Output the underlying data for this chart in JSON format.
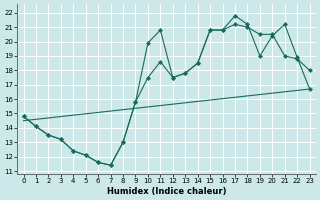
{
  "xlabel": "Humidex (Indice chaleur)",
  "xlim": [
    -0.5,
    23.5
  ],
  "ylim": [
    10.8,
    22.6
  ],
  "yticks": [
    11,
    12,
    13,
    14,
    15,
    16,
    17,
    18,
    19,
    20,
    21,
    22
  ],
  "xticks": [
    0,
    1,
    2,
    3,
    4,
    5,
    6,
    7,
    8,
    9,
    10,
    11,
    12,
    13,
    14,
    15,
    16,
    17,
    18,
    19,
    20,
    21,
    22,
    23
  ],
  "bg_color": "#cce8e8",
  "line_color": "#1a6b5a",
  "grid_color": "#ffffff",
  "line1_x": [
    0,
    1,
    2,
    3,
    4,
    5,
    6,
    7,
    8,
    9,
    10,
    11,
    12,
    13,
    14,
    15,
    16,
    17,
    18,
    19,
    20,
    21,
    22,
    23
  ],
  "line1_y": [
    14.8,
    14.1,
    13.5,
    13.2,
    12.4,
    12.1,
    11.6,
    11.4,
    13.0,
    15.8,
    17.5,
    18.6,
    17.5,
    17.8,
    18.5,
    20.8,
    20.8,
    21.2,
    21.0,
    20.5,
    20.5,
    19.0,
    18.8,
    18.0
  ],
  "line2_x": [
    0,
    1,
    2,
    3,
    4,
    5,
    6,
    7,
    8,
    9,
    10,
    11,
    12,
    13,
    14,
    15,
    16,
    17,
    18,
    19,
    20,
    21,
    22,
    23
  ],
  "line2_y": [
    14.8,
    14.1,
    13.5,
    13.2,
    12.4,
    12.1,
    11.6,
    11.4,
    13.0,
    15.8,
    19.9,
    20.8,
    17.5,
    17.8,
    18.5,
    20.8,
    20.8,
    21.8,
    21.2,
    19.0,
    20.4,
    21.2,
    18.9,
    16.7
  ],
  "line3_x": [
    0,
    23
  ],
  "line3_y": [
    14.5,
    16.7
  ]
}
